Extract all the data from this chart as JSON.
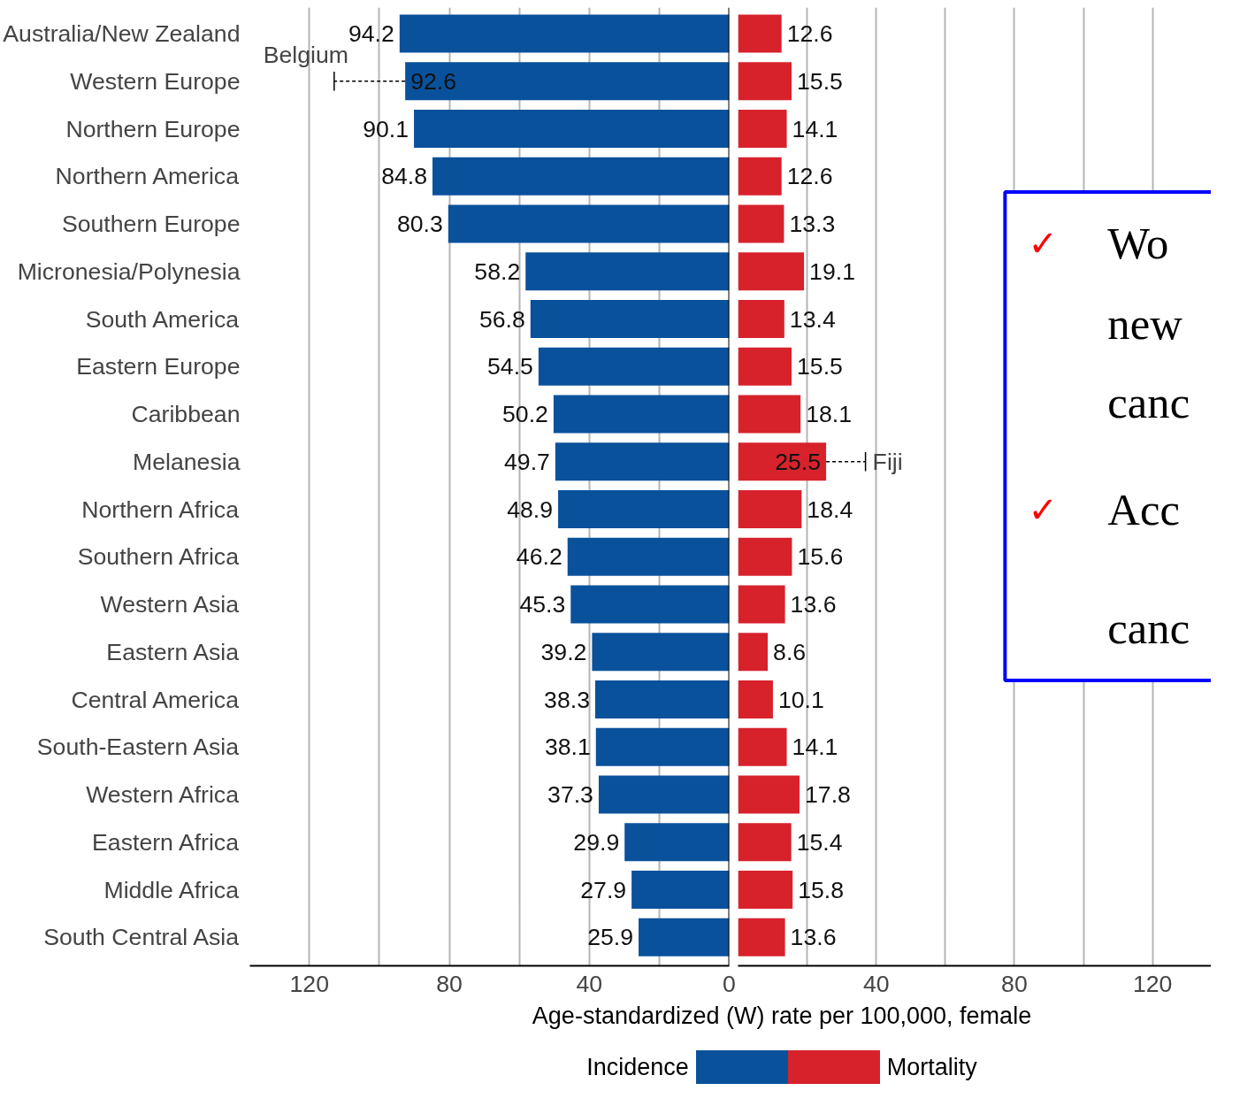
{
  "chart_data": [
    {
      "type": "bar",
      "orientation": "horizontal",
      "categories": [
        "Australia/New Zealand",
        "Western Europe",
        "Northern Europe",
        "Northern America",
        "Southern Europe",
        "Micronesia/Polynesia",
        "South America",
        "Eastern Europe",
        "Caribbean",
        "Melanesia",
        "Northern Africa",
        "Southern Africa",
        "Western Asia",
        "Eastern Asia",
        "Central America",
        "South-Eastern Asia",
        "Western Africa",
        "Eastern Africa",
        "Middle Africa",
        "South Central Asia"
      ],
      "series": [
        {
          "name": "Incidence",
          "color": "#0a519c",
          "values": [
            94.2,
            92.6,
            90.1,
            84.8,
            80.3,
            58.2,
            56.8,
            54.5,
            50.2,
            49.7,
            48.9,
            46.2,
            45.3,
            39.2,
            38.3,
            38.1,
            37.3,
            29.9,
            27.9,
            25.9
          ],
          "errors": [
            null,
            [
              92.6,
              112.9
            ],
            null,
            null,
            null,
            null,
            null,
            null,
            null,
            null,
            null,
            null,
            null,
            null,
            null,
            null,
            null,
            null,
            null,
            null
          ]
        }
      ],
      "data_labels": true,
      "xlabel": "Age-standardized (W) rate per 100,000, female",
      "xlim": [
        137,
        0
      ],
      "xticks": [
        120,
        {
          "value": 100,
          "label": null
        },
        80,
        {
          "value": 60,
          "label": null
        },
        40,
        {
          "value": 20,
          "label": null
        },
        0
      ],
      "grid": "x",
      "legend": "bottom",
      "ref_lines": [
        {
          "axis": "x",
          "value": 0,
          "color": "#000000"
        }
      ],
      "annotations": [
        "Belgium"
      ]
    },
    {
      "type": "bar",
      "orientation": "horizontal",
      "categories": [
        null,
        null,
        null,
        null,
        null,
        null,
        null,
        null,
        null,
        null,
        null,
        null,
        null,
        null,
        null,
        null,
        null,
        null,
        null,
        null
      ],
      "series": [
        {
          "name": "Mortality",
          "color": "#d7222c",
          "values": [
            12.6,
            15.5,
            14.1,
            12.6,
            13.3,
            19.1,
            13.4,
            15.5,
            18.1,
            25.5,
            18.4,
            15.6,
            13.6,
            8.6,
            10.1,
            14.1,
            17.8,
            15.4,
            15.8,
            13.6
          ],
          "errors": [
            null,
            null,
            null,
            null,
            null,
            null,
            null,
            null,
            null,
            [
              25.5,
              36.9
            ],
            null,
            null,
            null,
            null,
            null,
            null,
            null,
            null,
            null,
            null
          ]
        }
      ],
      "data_labels": true,
      "xlim": [
        0,
        137
      ],
      "xticks": [
        {
          "value": 20,
          "label": null
        },
        40,
        {
          "value": 60,
          "label": null
        },
        80,
        {
          "value": 100,
          "label": null
        },
        120
      ],
      "tick_labels": "x",
      "grid": "x",
      "legend": "bottom",
      "annotations": [
        "Fiji"
      ]
    },
    {
      "type": "other",
      "annotations": [
        "✓",
        "Wo",
        "new",
        "canc",
        "✓",
        "Acc",
        "canc"
      ]
    }
  ]
}
